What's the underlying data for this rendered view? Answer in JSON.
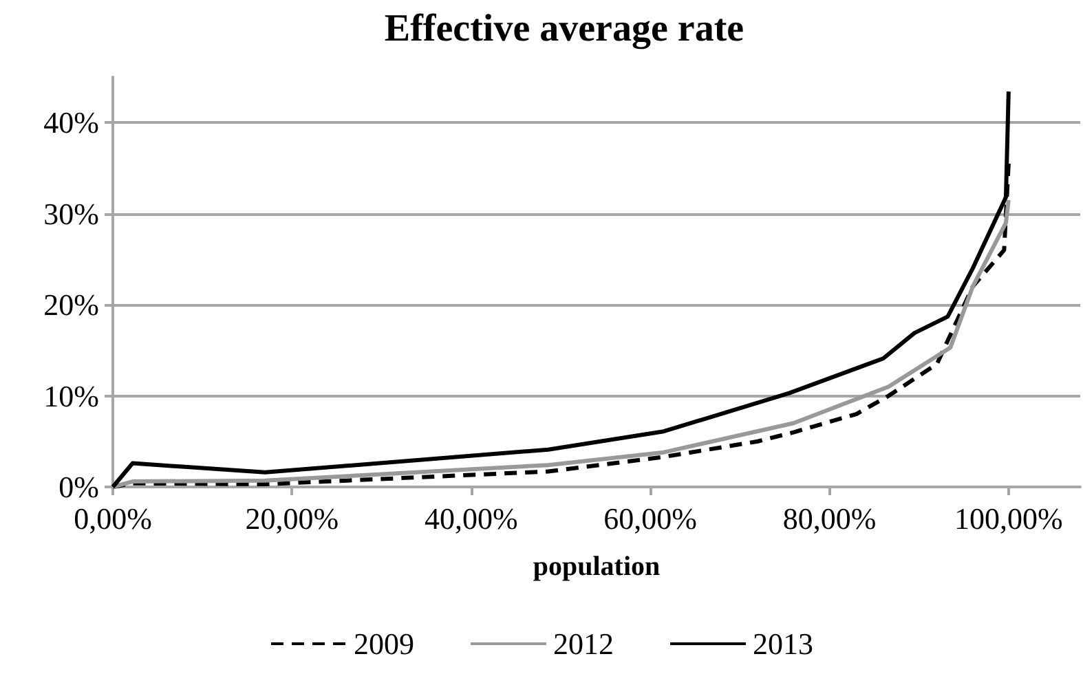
{
  "chart_data": {
    "type": "line",
    "title": "Effective average rate",
    "xlabel": "population",
    "xlim": [
      0,
      108
    ],
    "xticks": [
      {
        "value": 0,
        "label": "0,00%"
      },
      {
        "value": 20,
        "label": "20,00%"
      },
      {
        "value": 40,
        "label": "40,00%"
      },
      {
        "value": 60,
        "label": "60,00%"
      },
      {
        "value": 80,
        "label": "80,00%"
      },
      {
        "value": 100,
        "label": "100,00%"
      }
    ],
    "ylim": [
      0,
      45
    ],
    "yticks": [
      {
        "value": 0,
        "label": "0%"
      },
      {
        "value": 10,
        "label": "10%"
      },
      {
        "value": 20,
        "label": "20%"
      },
      {
        "value": 30,
        "label": "30%"
      },
      {
        "value": 40,
        "label": "40%"
      }
    ],
    "grid": "y",
    "legend": "bottom",
    "marker": "none",
    "series": [
      {
        "name": "2009",
        "color": "#000000",
        "line_style": "dashed",
        "x": [
          0,
          2.2,
          17,
          48.6,
          61.5,
          72,
          76,
          83,
          86.6,
          92,
          96,
          99.5,
          100
        ],
        "values": [
          0,
          0.4,
          0.3,
          1.7,
          3.3,
          5,
          6,
          8,
          10,
          13.5,
          22,
          26,
          35.5
        ]
      },
      {
        "name": "2012",
        "color": "#999999",
        "line_style": "solid",
        "x": [
          0,
          2.2,
          17,
          48.6,
          61.5,
          76,
          86.6,
          93.5,
          96,
          99.7,
          100
        ],
        "values": [
          0,
          0.6,
          0.7,
          2.4,
          3.8,
          7,
          11,
          15.3,
          22,
          29,
          31.5
        ]
      },
      {
        "name": "2013",
        "color": "#000000",
        "line_style": "solid",
        "x": [
          0,
          2.2,
          17,
          48.6,
          61.5,
          75.5,
          86,
          89.5,
          93.2,
          96,
          99.7,
          100
        ],
        "values": [
          0,
          2.6,
          1.6,
          4.1,
          6.1,
          10.3,
          14.1,
          16.9,
          18.7,
          24,
          31.8,
          43.4
        ]
      }
    ]
  }
}
